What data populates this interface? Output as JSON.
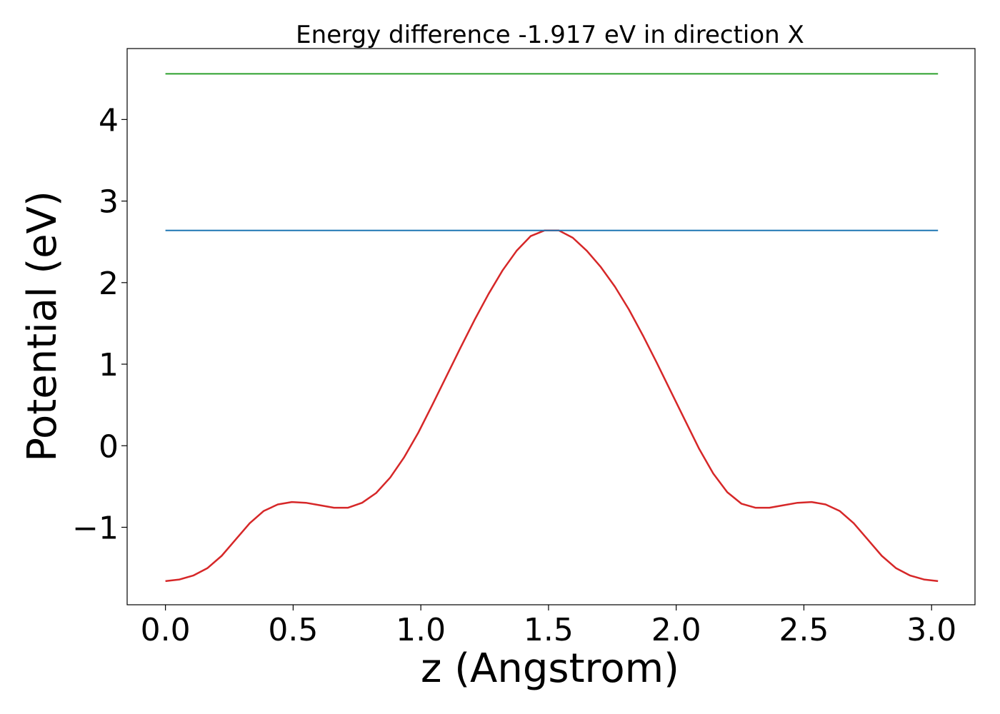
{
  "chart_data": {
    "type": "line",
    "title": "Energy difference -1.917 eV in direction X",
    "xlabel": "z (Angstrom)",
    "ylabel": "Potential (eV)",
    "xlim": [
      -0.15,
      3.17
    ],
    "ylim": [
      -1.95,
      4.87
    ],
    "xticks": [
      0.0,
      0.5,
      1.0,
      1.5,
      2.0,
      2.5,
      3.0
    ],
    "xtick_labels": [
      "0.0",
      "0.5",
      "1.0",
      "1.5",
      "2.0",
      "2.5",
      "3.0"
    ],
    "yticks": [
      -1,
      0,
      1,
      2,
      3,
      4
    ],
    "ytick_labels": [
      "−1",
      "0",
      "1",
      "2",
      "3",
      "4"
    ],
    "grid": false,
    "legend": "none",
    "series": [
      {
        "color": "#d62728",
        "x": [
          0.0,
          0.055,
          0.11,
          0.165,
          0.22,
          0.275,
          0.33,
          0.385,
          0.44,
          0.495,
          0.55,
          0.605,
          0.66,
          0.715,
          0.77,
          0.825,
          0.88,
          0.935,
          0.99,
          1.045,
          1.1,
          1.155,
          1.21,
          1.265,
          1.32,
          1.375,
          1.43,
          1.485,
          1.54,
          1.595,
          1.65,
          1.705,
          1.76,
          1.815,
          1.87,
          1.925,
          1.98,
          2.035,
          2.09,
          2.145,
          2.2,
          2.255,
          2.31,
          2.365,
          2.42,
          2.475,
          2.53,
          2.585,
          2.64,
          2.695,
          2.75,
          2.805,
          2.86,
          2.915,
          2.97,
          3.025
        ],
        "y": [
          -1.66,
          -1.64,
          -1.59,
          -1.5,
          -1.35,
          -1.15,
          -0.95,
          -0.8,
          -0.72,
          -0.69,
          -0.7,
          -0.73,
          -0.76,
          -0.76,
          -0.7,
          -0.58,
          -0.39,
          -0.14,
          0.16,
          0.5,
          0.85,
          1.2,
          1.54,
          1.86,
          2.15,
          2.39,
          2.57,
          2.64,
          2.64,
          2.55,
          2.39,
          2.19,
          1.95,
          1.67,
          1.35,
          1.01,
          0.66,
          0.31,
          -0.04,
          -0.34,
          -0.57,
          -0.71,
          -0.76,
          -0.76,
          -0.73,
          -0.7,
          -0.69,
          -0.72,
          -0.8,
          -0.95,
          -1.15,
          -1.35,
          -1.5,
          -1.59,
          -1.64,
          -1.66
        ]
      },
      {
        "color": "#1f77b4",
        "x": [
          0.0,
          3.025
        ],
        "y": [
          2.64,
          2.64
        ]
      },
      {
        "color": "#2ca02c",
        "x": [
          0.0,
          3.025
        ],
        "y": [
          4.56,
          4.56
        ]
      }
    ]
  }
}
